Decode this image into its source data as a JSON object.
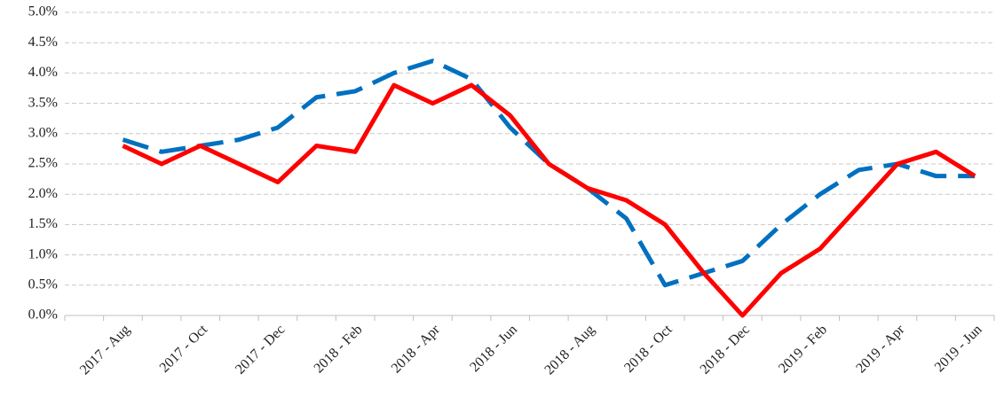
{
  "chart_data": {
    "type": "line",
    "categories": [
      null,
      "2017 - Aug",
      null,
      "2017 - Oct",
      null,
      "2017 - Dec",
      null,
      "2018 - Feb",
      null,
      "2018 - Apr",
      null,
      "2018 - Jun",
      null,
      "2018 - Aug",
      null,
      "2018 - Oct",
      null,
      "2018 - Dec",
      null,
      "2019 - Feb",
      null,
      "2019 - Apr",
      null,
      "2019 - Jun"
    ],
    "series": [
      {
        "color": "#0070c0",
        "dash": true,
        "values": [
          null,
          2.9,
          2.7,
          2.8,
          2.9,
          3.1,
          3.6,
          3.7,
          4.0,
          4.2,
          3.9,
          3.1,
          2.5,
          2.1,
          1.6,
          0.5,
          0.7,
          0.9,
          1.5,
          2.0,
          2.4,
          2.5,
          2.3,
          2.3
        ]
      },
      {
        "color": "#ff0000",
        "dash": false,
        "values": [
          null,
          2.8,
          2.5,
          2.8,
          2.5,
          2.2,
          2.8,
          2.7,
          3.8,
          3.5,
          3.8,
          3.3,
          2.5,
          2.1,
          1.9,
          1.5,
          0.7,
          0.0,
          0.7,
          1.1,
          1.8,
          2.5,
          2.7,
          2.3
        ]
      }
    ],
    "ylim": [
      0,
      5
    ],
    "yticks": [
      {
        "value": 0,
        "label": "0.0%"
      },
      {
        "value": 0.5,
        "label": "0.5%"
      },
      {
        "value": 1,
        "label": "1.0%"
      },
      {
        "value": 1.5,
        "label": "1.5%"
      },
      {
        "value": 2,
        "label": "2.0%"
      },
      {
        "value": 2.5,
        "label": "2.5%"
      },
      {
        "value": 3,
        "label": "3.0%"
      },
      {
        "value": 3.5,
        "label": "3.5%"
      },
      {
        "value": 4,
        "label": "4.0%"
      },
      {
        "value": 4.5,
        "label": "4.5%"
      },
      {
        "value": 5,
        "label": "5.0%"
      }
    ],
    "grid": true
  }
}
